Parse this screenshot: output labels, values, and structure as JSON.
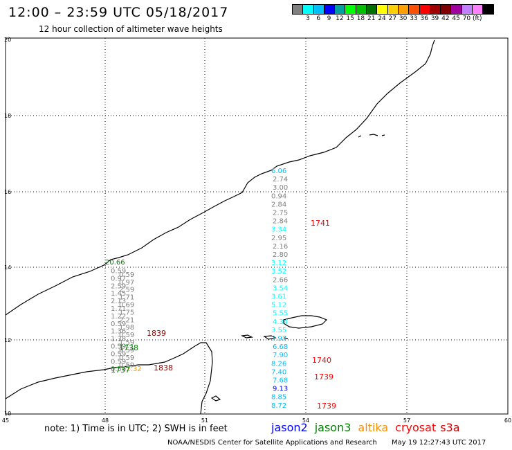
{
  "header": {
    "title": "12:00 – 23:59 UTC 05/18/2017",
    "subtitle": "12 hour collection of altimeter wave heights"
  },
  "legend": {
    "colors": [
      "#808080",
      "#00ffff",
      "#00bfff",
      "#0000ff",
      "#00a0a0",
      "#00ff00",
      "#00c000",
      "#007000",
      "#ffff00",
      "#ffd000",
      "#ffa000",
      "#ff5000",
      "#ff0000",
      "#a00000",
      "#800000",
      "#a000a0",
      "#c080ff",
      "#ff80ff",
      "#000000"
    ],
    "labels": [
      "3",
      "6",
      "9",
      "12",
      "15",
      "18",
      "21",
      "24",
      "27",
      "30",
      "33",
      "36",
      "39",
      "42",
      "45",
      "70",
      "(ft)"
    ]
  },
  "axes": {
    "lat_labels": [
      "20",
      "18",
      "16",
      "14",
      "12",
      "10"
    ],
    "lon_labels": [
      "45",
      "48",
      "51",
      "54",
      "57",
      "60"
    ]
  },
  "tracks": [
    {
      "id": "t1",
      "values": [
        {
          "t": "20.66",
          "c": "#008000"
        },
        {
          "t": "0.59",
          "c": "#808080"
        },
        {
          "t": "0.59",
          "c": "#808080"
        },
        {
          "t": "0.97",
          "c": "#808080"
        },
        {
          "t": "0.97",
          "c": "#808080"
        },
        {
          "t": "2.59",
          "c": "#808080"
        },
        {
          "t": "2.59",
          "c": "#808080"
        },
        {
          "t": "1.45",
          "c": "#808080"
        },
        {
          "t": "1.71",
          "c": "#808080"
        },
        {
          "t": "2.13",
          "c": "#808080"
        },
        {
          "t": "0.69",
          "c": "#808080"
        },
        {
          "t": "1.71",
          "c": "#808080"
        },
        {
          "t": "1.75",
          "c": "#808080"
        },
        {
          "t": "1.22",
          "c": "#808080"
        },
        {
          "t": "2.21",
          "c": "#808080"
        },
        {
          "t": "0.59",
          "c": "#808080"
        },
        {
          "t": "1.98",
          "c": "#808080"
        },
        {
          "t": "1.36",
          "c": "#808080"
        },
        {
          "t": "0.59",
          "c": "#808080"
        },
        {
          "t": "1.38",
          "c": "#808080"
        },
        {
          "t": "1.59",
          "c": "#808080"
        },
        {
          "t": "0.59",
          "c": "#808080"
        },
        {
          "t": "0.59",
          "c": "#808080"
        },
        {
          "t": "0.59",
          "c": "#808080"
        },
        {
          "t": "0.59",
          "c": "#808080"
        },
        {
          "t": "0.59",
          "c": "#808080"
        },
        {
          "t": "0.59",
          "c": "#808080"
        },
        {
          "t": "0.59",
          "c": "#808080"
        },
        {
          "t": "12.32",
          "c": "#ffa000"
        }
      ]
    },
    {
      "id": "t2",
      "values": [
        {
          "t": "6.06",
          "c": "#00bfff"
        },
        {
          "t": "2.74",
          "c": "#808080"
        },
        {
          "t": "3.00",
          "c": "#808080"
        },
        {
          "t": "0.94",
          "c": "#808080"
        },
        {
          "t": "2.84",
          "c": "#808080"
        },
        {
          "t": "2.75",
          "c": "#808080"
        },
        {
          "t": "2.84",
          "c": "#808080"
        },
        {
          "t": "3.34",
          "c": "#00ffff"
        },
        {
          "t": "2.95",
          "c": "#808080"
        },
        {
          "t": "2.16",
          "c": "#808080"
        },
        {
          "t": "2.80",
          "c": "#808080"
        },
        {
          "t": "3.12",
          "c": "#00ffff"
        },
        {
          "t": "3.52",
          "c": "#00ffff"
        },
        {
          "t": "2.66",
          "c": "#808080"
        },
        {
          "t": "3.54",
          "c": "#00ffff"
        },
        {
          "t": "3.61",
          "c": "#00ffff"
        },
        {
          "t": "5.12",
          "c": "#00ffff"
        },
        {
          "t": "5.55",
          "c": "#00ffff"
        },
        {
          "t": "4.34",
          "c": "#00ffff"
        },
        {
          "t": "3.55",
          "c": "#00ffff"
        },
        {
          "t": "7.97",
          "c": "#00bfff"
        },
        {
          "t": "6.68",
          "c": "#00bfff"
        },
        {
          "t": "7.90",
          "c": "#00bfff"
        },
        {
          "t": "8.26",
          "c": "#00bfff"
        },
        {
          "t": "7.40",
          "c": "#00bfff"
        },
        {
          "t": "7.68",
          "c": "#00bfff"
        },
        {
          "t": "9.13",
          "c": "#0000ff"
        },
        {
          "t": "8.85",
          "c": "#00bfff"
        },
        {
          "t": "8.72",
          "c": "#00bfff"
        }
      ]
    }
  ],
  "time_labels": [
    {
      "t": "1741",
      "c": "#ff0000"
    },
    {
      "t": "1839",
      "c": "#800000"
    },
    {
      "t": "1738",
      "c": "#008000"
    },
    {
      "t": "1737",
      "c": "#008000"
    },
    {
      "t": "1838",
      "c": "#800000"
    },
    {
      "t": "1740",
      "c": "#ff0000"
    },
    {
      "t": "1739",
      "c": "#ff0000"
    },
    {
      "t": "1739",
      "c": "#ff0000"
    }
  ],
  "note": "note:  1) Time is in UTC;  2) SWH is in feet",
  "satellites": [
    {
      "name": "jason2",
      "color": "#0000ff"
    },
    {
      "name": "jason3",
      "color": "#008000"
    },
    {
      "name": "altika",
      "color": "#ff9000"
    },
    {
      "name": "cryosat",
      "color": "#ff0000"
    },
    {
      "name": "s3a",
      "color": "#cc0000"
    }
  ],
  "credit": {
    "org": "NOAA/NESDIS Center for Satellite Applications and Research",
    "time": "May 19 12:27:43 UTC 2017"
  }
}
